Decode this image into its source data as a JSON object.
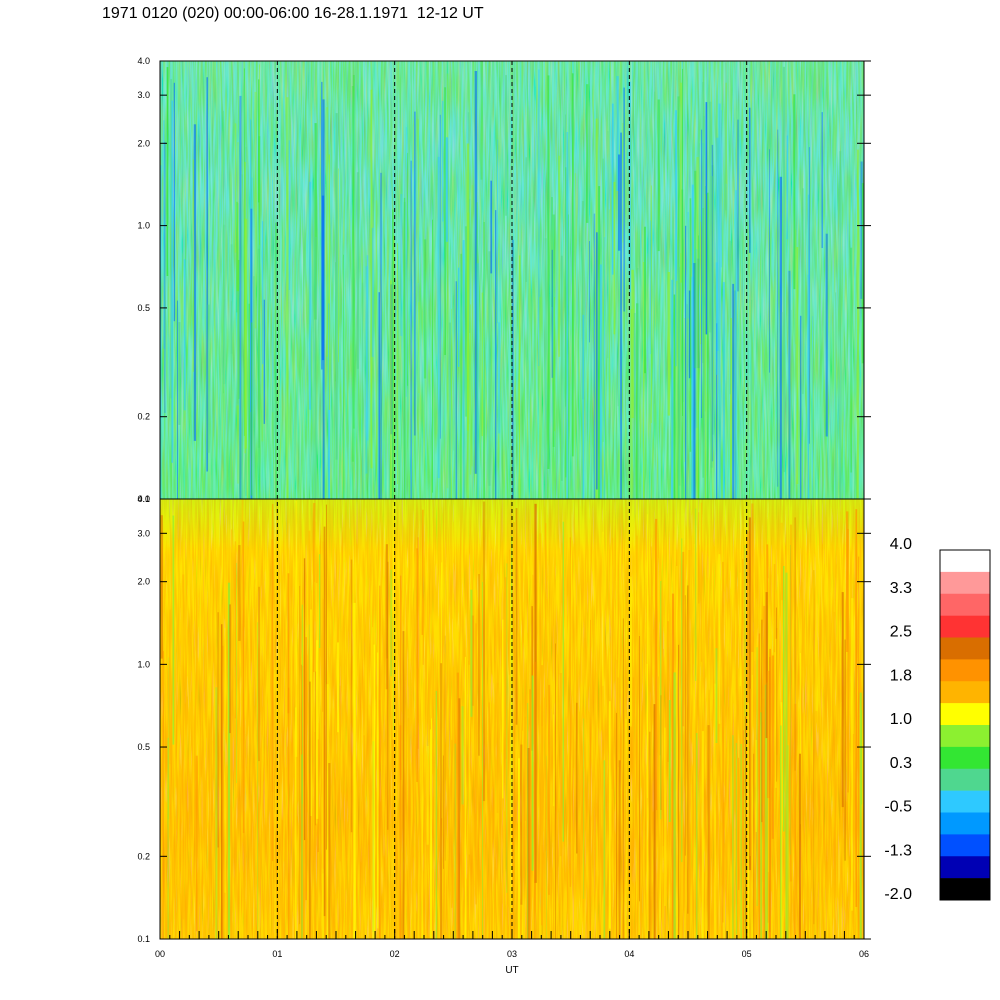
{
  "title": "1971 0120 (020) 00:00-06:00 16-28.1.1971  12-12 UT",
  "chart_data": [
    {
      "type": "heatmap",
      "panel": "top",
      "x_range": [
        0,
        6
      ],
      "y_scale": "log",
      "y_range": [
        0.1,
        4.0
      ],
      "y_ticks": [
        0.1,
        0.2,
        0.5,
        1.0,
        2.0,
        3.0,
        4.0
      ],
      "y_tick_labels": [
        "0.1",
        "0.2",
        "0.5",
        "1.0",
        "2.0",
        "3.0",
        "4.0"
      ],
      "value_range_typical": [
        -1.3,
        1.0
      ],
      "dominant_colors": [
        "#33e633",
        "#55d88a",
        "#2ecaff",
        "#8cf030",
        "#0066ff"
      ]
    },
    {
      "type": "heatmap",
      "panel": "bottom",
      "x_range": [
        0,
        6
      ],
      "y_scale": "log",
      "y_range": [
        0.1,
        4.0
      ],
      "y_ticks": [
        0.1,
        0.2,
        0.5,
        1.0,
        2.0,
        3.0,
        4.0
      ],
      "y_tick_labels": [
        "0.1",
        "0.2",
        "0.5",
        "1.0",
        "2.0",
        "3.0",
        "4.0"
      ],
      "value_range_typical": [
        0.3,
        2.5
      ],
      "dominant_colors": [
        "#ffb400",
        "#ff9200",
        "#ffff00",
        "#8cf030",
        "#d86e00"
      ]
    }
  ],
  "x_axis": {
    "label": "UT",
    "ticks": [
      0,
      1,
      2,
      3,
      4,
      5,
      6
    ],
    "tick_labels": [
      "00",
      "01",
      "02",
      "03",
      "04",
      "05",
      "06"
    ],
    "dashed_lines_at": [
      1,
      2,
      3,
      4,
      5
    ]
  },
  "colorbar": {
    "labels": [
      "4.0",
      "3.3",
      "2.5",
      "1.8",
      "1.0",
      "0.3",
      "-0.5",
      "-1.3",
      "-2.0"
    ],
    "colors": [
      "#ffffff",
      "#ff9999",
      "#ff6666",
      "#ff3333",
      "#d96e00",
      "#ff9200",
      "#ffb400",
      "#ffff00",
      "#8cf030",
      "#33e633",
      "#4fd78f",
      "#2ec9ff",
      "#0099ff",
      "#0050ff",
      "#0000b4",
      "#000000"
    ]
  }
}
